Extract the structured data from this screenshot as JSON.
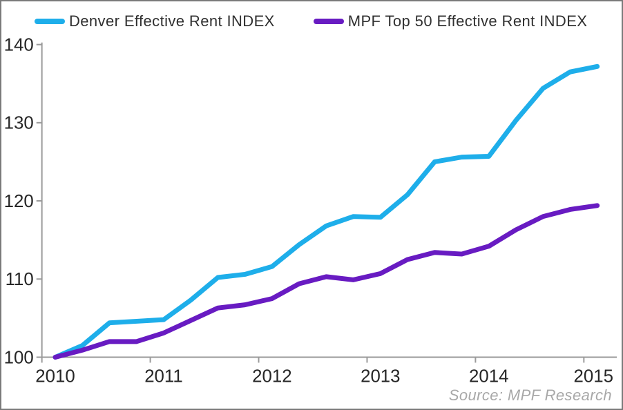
{
  "legend": {
    "items": [
      {
        "label": "Denver Effective Rent INDEX",
        "color": "#1EAEEA"
      },
      {
        "label": "MPF Top 50 Effective Rent INDEX",
        "color": "#681BC2"
      }
    ]
  },
  "source_note": "Source: MPF Research",
  "colors": {
    "denver_line": "#1EAEEA",
    "mpf_line": "#681BC2",
    "axis": "#9A9A9A",
    "tick_label": "#262626",
    "legend_text": "#303030",
    "source_text": "#A8A8A8",
    "border": "#7A7A7A",
    "background": "#FFFFFF"
  },
  "chart_data": {
    "type": "line",
    "title": "",
    "xlabel": "",
    "ylabel": "",
    "grid": false,
    "legend_position": "top",
    "ylim": [
      100,
      140
    ],
    "y_ticks": [
      100,
      110,
      120,
      130,
      140
    ],
    "x_tick_labels": [
      "2010",
      "2011",
      "2012",
      "2013",
      "2014",
      "2015"
    ],
    "categories": [
      "2010 Q1",
      "2010 Q2",
      "2010 Q3",
      "2010 Q4",
      "2011 Q1",
      "2011 Q2",
      "2011 Q3",
      "2011 Q4",
      "2012 Q1",
      "2012 Q2",
      "2012 Q3",
      "2012 Q4",
      "2013 Q1",
      "2013 Q2",
      "2013 Q3",
      "2013 Q4",
      "2014 Q1",
      "2014 Q2",
      "2014 Q3",
      "2014 Q4",
      "2015 Q1"
    ],
    "series": [
      {
        "name": "Denver Effective Rent INDEX",
        "color": "#1EAEEA",
        "values": [
          100.0,
          101.5,
          104.4,
          104.6,
          104.8,
          107.3,
          110.2,
          110.6,
          111.6,
          114.4,
          116.8,
          118.0,
          117.9,
          120.8,
          125.0,
          125.6,
          125.7,
          130.3,
          134.4,
          136.5,
          137.2
        ]
      },
      {
        "name": "MPF Top 50 Effective Rent INDEX",
        "color": "#681BC2",
        "values": [
          100.0,
          100.9,
          102.0,
          102.0,
          103.1,
          104.7,
          106.3,
          106.7,
          107.5,
          109.4,
          110.3,
          109.9,
          110.7,
          112.5,
          113.4,
          113.2,
          114.2,
          116.3,
          118.0,
          118.9,
          119.4
        ]
      }
    ],
    "source": "Source: MPF Research"
  }
}
